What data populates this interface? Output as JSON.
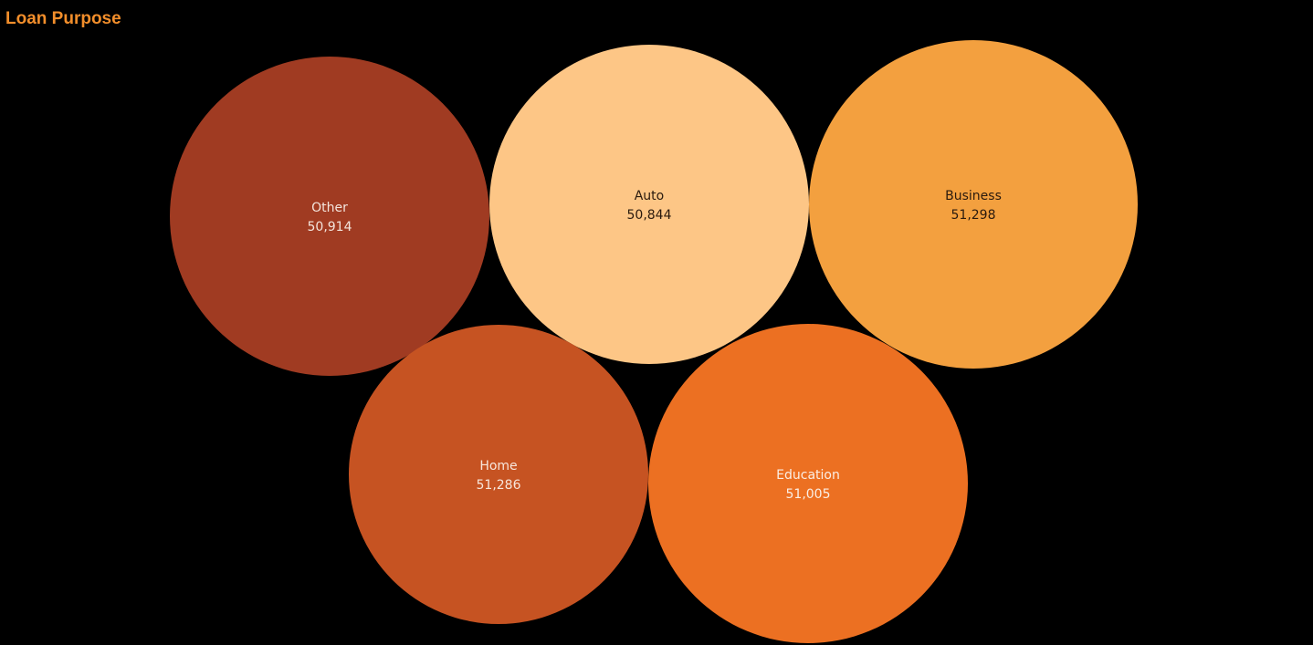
{
  "title": "Loan Purpose",
  "colors": {
    "background": "#000000",
    "title": "#f28e2b"
  },
  "chart_data": {
    "type": "packed-bubble",
    "title": "Loan Purpose",
    "legend": "none",
    "grid": false,
    "items": [
      {
        "label": "Other",
        "value": 50914,
        "display": "50,914",
        "color": "#a03b22",
        "text_color": "#f3e4dc"
      },
      {
        "label": "Auto",
        "value": 50844,
        "display": "50,844",
        "color": "#fdc686",
        "text_color": "#2a1a0e"
      },
      {
        "label": "Business",
        "value": 51298,
        "display": "51,298",
        "color": "#f3a03f",
        "text_color": "#2a1a0e"
      },
      {
        "label": "Home",
        "value": 51286,
        "display": "51,286",
        "color": "#c65322",
        "text_color": "#f7e6dc"
      },
      {
        "label": "Education",
        "value": 51005,
        "display": "51,005",
        "color": "#ec7022",
        "text_color": "#fbeee4"
      }
    ]
  }
}
